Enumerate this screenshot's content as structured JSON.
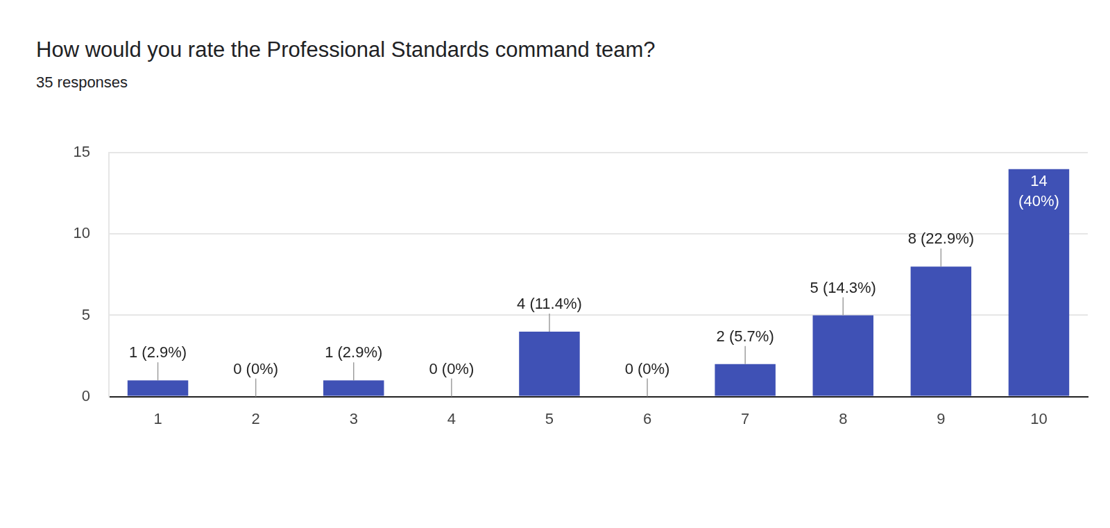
{
  "chart_data": {
    "type": "bar",
    "title": "How would you rate the Professional Standards command team?",
    "subtitle": "35 responses",
    "categories": [
      "1",
      "2",
      "3",
      "4",
      "5",
      "6",
      "7",
      "8",
      "9",
      "10"
    ],
    "values": [
      1,
      0,
      1,
      0,
      4,
      0,
      2,
      5,
      8,
      14
    ],
    "value_labels": [
      "1 (2.9%)",
      "0 (0%)",
      "1 (2.9%)",
      "0 (0%)",
      "4 (11.4%)",
      "0 (0%)",
      "2 (5.7%)",
      "5 (14.3%)",
      "8 (22.9%)",
      "14 (40%)"
    ],
    "color": "#3f51b5",
    "ylim": [
      0,
      15
    ],
    "yticks": [
      0,
      5,
      10,
      15
    ],
    "grid": true,
    "data_labels": true
  }
}
